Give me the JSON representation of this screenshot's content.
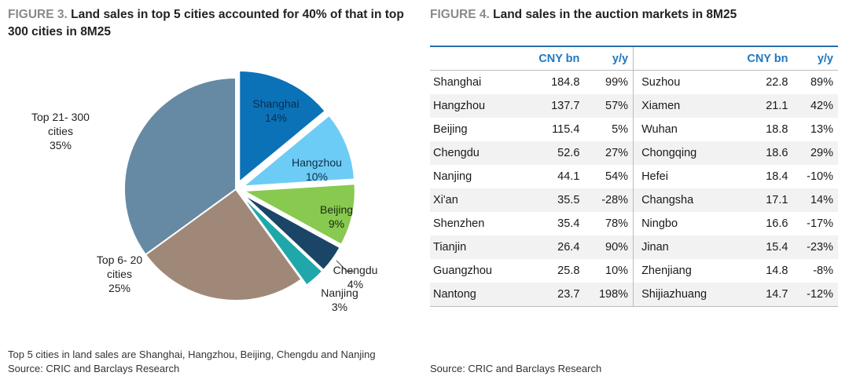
{
  "figure3": {
    "number": "FIGURE 3.",
    "title": "Land sales in top 5 cities accounted for 40% of that in top 300 cities in 8M25",
    "footnote": "Top 5 cities in land sales are Shanghai, Hangzhou, Beijing, Chengdu and Nanjing",
    "source": "Source: CRIC and Barclays Research"
  },
  "figure4": {
    "number": "FIGURE 4.",
    "title": "Land sales in the auction markets in 8M25",
    "headers": {
      "value": "CNY bn",
      "change": "y/y"
    },
    "left_rows": [
      {
        "city": "Shanghai",
        "value": "184.8",
        "change": "99%"
      },
      {
        "city": "Hangzhou",
        "value": "137.7",
        "change": "57%"
      },
      {
        "city": "Beijing",
        "value": "115.4",
        "change": "5%"
      },
      {
        "city": "Chengdu",
        "value": "52.6",
        "change": "27%"
      },
      {
        "city": "Nanjing",
        "value": "44.1",
        "change": "54%"
      },
      {
        "city": "Xi'an",
        "value": "35.5",
        "change": "-28%"
      },
      {
        "city": "Shenzhen",
        "value": "35.4",
        "change": "78%"
      },
      {
        "city": "Tianjin",
        "value": "26.4",
        "change": "90%"
      },
      {
        "city": "Guangzhou",
        "value": "25.8",
        "change": "10%"
      },
      {
        "city": "Nantong",
        "value": "23.7",
        "change": "198%"
      }
    ],
    "right_rows": [
      {
        "city": "Suzhou",
        "value": "22.8",
        "change": "89%"
      },
      {
        "city": "Xiamen",
        "value": "21.1",
        "change": "42%"
      },
      {
        "city": "Wuhan",
        "value": "18.8",
        "change": "13%"
      },
      {
        "city": "Chongqing",
        "value": "18.6",
        "change": "29%"
      },
      {
        "city": "Hefei",
        "value": "18.4",
        "change": "-10%"
      },
      {
        "city": "Changsha",
        "value": "17.1",
        "change": "14%"
      },
      {
        "city": "Ningbo",
        "value": "16.6",
        "change": "-17%"
      },
      {
        "city": "Jinan",
        "value": "15.4",
        "change": "-23%"
      },
      {
        "city": "Zhenjiang",
        "value": "14.8",
        "change": "-8%"
      },
      {
        "city": "Shijiazhuang",
        "value": "14.7",
        "change": "-12%"
      }
    ],
    "source": "Source: CRIC and Barclays Research"
  },
  "chart_data": {
    "type": "pie",
    "title": "Land sales in top 5 cities accounted for 40% of that in top 300 cities in 8M25",
    "slices": [
      {
        "name": "Shanghai",
        "label": "Shanghai",
        "value": 14,
        "value_label": "14%",
        "color": "#0b72b8",
        "exploded": true
      },
      {
        "name": "Hangzhou",
        "label": "Hangzhou",
        "value": 10,
        "value_label": "10%",
        "color": "#6dccf5",
        "exploded": true
      },
      {
        "name": "Beijing",
        "label": "Beijing",
        "value": 9,
        "value_label": "9%",
        "color": "#88c94f",
        "exploded": true
      },
      {
        "name": "Chengdu",
        "label": "Chengdu",
        "value": 4,
        "value_label": "4%",
        "color": "#1b4566",
        "exploded": true
      },
      {
        "name": "Nanjing",
        "label": "Nanjing",
        "value": 3,
        "value_label": "3%",
        "color": "#1fa7a9",
        "exploded": true
      },
      {
        "name": "Top 6-20 cities",
        "label": "Top 6- 20\ncities",
        "value": 25,
        "value_label": "25%",
        "color": "#a08878",
        "exploded": false
      },
      {
        "name": "Top 21-300 cities",
        "label": "Top 21- 300\ncities",
        "value": 35,
        "value_label": "35%",
        "color": "#668aa3",
        "exploded": false
      }
    ]
  }
}
